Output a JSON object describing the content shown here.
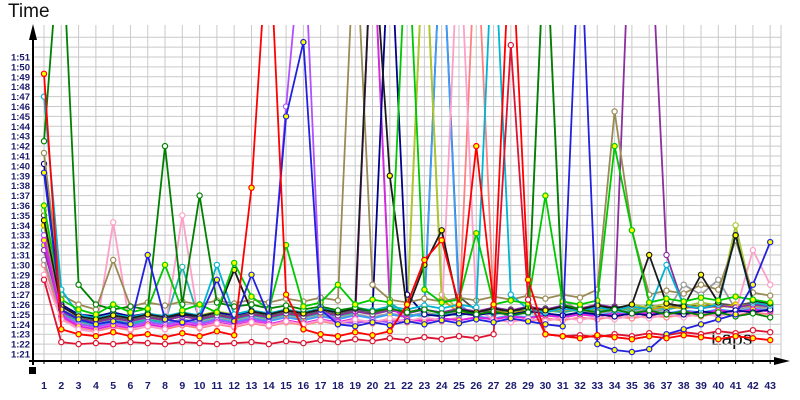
{
  "chart_data": {
    "type": "line",
    "title": "",
    "xlabel": "Laps",
    "ylabel": "Time",
    "x_ticks": [
      "1",
      "2",
      "3",
      "4",
      "5",
      "6",
      "7",
      "8",
      "9",
      "10",
      "11",
      "12",
      "13",
      "14",
      "15",
      "16",
      "17",
      "18",
      "19",
      "20",
      "21",
      "22",
      "23",
      "24",
      "25",
      "26",
      "27",
      "28",
      "29",
      "30",
      "31",
      "32",
      "33",
      "34",
      "35",
      "36",
      "37",
      "38",
      "39",
      "40",
      "41",
      "42",
      "43"
    ],
    "y_ticks": [
      "1:51",
      "1:50",
      "1:49",
      "1:48",
      "1:47",
      "1:46",
      "1:45",
      "1:44",
      "1:43",
      "1:42",
      "1:41",
      "1:40",
      "1:39",
      "1:38",
      "1:37",
      "1:36",
      "1:35",
      "1:34",
      "1:33",
      "1:32",
      "1:31",
      "1:30",
      "1:29",
      "1:28",
      "1:27",
      "1:26",
      "1:25",
      "1:24",
      "1:23",
      "1:22",
      "1:21"
    ],
    "x_range": [
      1,
      43
    ],
    "y_range_seconds": [
      80,
      114
    ],
    "grid": true,
    "legend": "none",
    "colors": {
      "background": "#ffffff",
      "grid": "#c9c9c9",
      "axis": "#000000",
      "tick_label": "#1b1b6e",
      "marker_fill_a": "#ffff00",
      "marker_fill_b": "#ffffff"
    },
    "note_units": "values are lap times in total seconds; 85.0 = 1:25.0; values >= 114 run off the top of the plot",
    "series": [
      {
        "name": "salmon",
        "color": "#ff8080",
        "marker": "#ffffff",
        "values": [
          90.0,
          84.6,
          83.6,
          83.3,
          83.7,
          83.4,
          83.8,
          83.5,
          83.9,
          83.6,
          84.0,
          83.7,
          84.1,
          83.8,
          84.2,
          83.9,
          84.3,
          84.0,
          84.4,
          84.1,
          84.5,
          84.2,
          84.6,
          84.3,
          84.7,
          125.0,
          85.8,
          84.5,
          84.3,
          84.6,
          84.4,
          84.7,
          84.5,
          84.8,
          84.6,
          84.9,
          84.7,
          85.0,
          84.8,
          85.1,
          84.9,
          85.2,
          85.0
        ]
      },
      {
        "name": "gray",
        "color": "#9a9a9a",
        "marker": "#ffffff",
        "values": [
          90.5,
          85.0,
          84.2,
          83.9,
          84.3,
          84.0,
          84.4,
          84.1,
          84.5,
          84.2,
          84.6,
          84.3,
          84.7,
          84.4,
          84.8,
          84.5,
          84.9,
          84.6,
          85.0,
          84.7,
          85.1,
          84.8,
          85.2,
          84.9,
          85.3,
          85.0,
          85.4,
          85.1,
          85.5,
          125.0,
          86.5,
          85.3,
          85.1,
          85.4,
          85.2,
          85.5,
          85.3,
          88.0,
          87.0,
          88.5,
          85.5,
          85.8,
          85.6
        ]
      },
      {
        "name": "darkgray",
        "color": "#4d4d4d",
        "marker": "#ffffff",
        "values": [
          95.0,
          85.5,
          84.6,
          84.3,
          84.7,
          84.4,
          84.8,
          84.5,
          84.9,
          84.6,
          85.0,
          84.7,
          85.1,
          84.8,
          85.2,
          84.9,
          85.3,
          85.0,
          85.4,
          85.1,
          85.5,
          85.2,
          85.6,
          125.0,
          86.8,
          85.4,
          85.2,
          85.5,
          85.3,
          85.6,
          85.4,
          85.7,
          85.5,
          85.8,
          85.6,
          85.9,
          85.7,
          86.0,
          85.8,
          86.1,
          85.9,
          86.2,
          86.0
        ]
      },
      {
        "name": "turquoise",
        "color": "#20b2aa",
        "marker": "#ffffff",
        "values": [
          93.5,
          85.2,
          84.3,
          84.0,
          84.4,
          84.1,
          84.5,
          84.2,
          89.8,
          84.4,
          84.8,
          84.5,
          84.9,
          84.6,
          85.0,
          84.7,
          85.1,
          84.8,
          85.2,
          125.0,
          86.2,
          85.0,
          84.8,
          85.1,
          84.9,
          85.2,
          85.0,
          85.3,
          85.1,
          85.4,
          85.2,
          85.5,
          85.3,
          85.6,
          85.4,
          85.7,
          85.5,
          85.8,
          85.6,
          85.9,
          85.7,
          86.0,
          85.8
        ]
      },
      {
        "name": "skyblue",
        "color": "#3c9bff",
        "marker": "#ffff00",
        "values": [
          92.0,
          85.0,
          84.0,
          83.8,
          84.2,
          83.9,
          84.3,
          84.0,
          84.4,
          84.1,
          84.5,
          84.2,
          84.6,
          84.3,
          84.7,
          84.4,
          84.8,
          84.5,
          84.9,
          84.6,
          85.0,
          84.7,
          85.1,
          125.0,
          86.0,
          84.8,
          84.6,
          84.9,
          84.7,
          85.0,
          84.8,
          85.1,
          84.9,
          85.2,
          85.0,
          85.3,
          85.1,
          85.4,
          85.2,
          85.5,
          85.3,
          85.6,
          85.4
        ]
      },
      {
        "name": "gold",
        "color": "#c8a800",
        "marker": "#ffff00",
        "values": [
          94.0,
          85.5,
          84.5,
          84.2,
          84.6,
          84.3,
          84.7,
          84.4,
          84.8,
          84.5,
          84.9,
          84.6,
          85.0,
          84.7,
          85.1,
          84.8,
          85.2,
          84.9,
          85.3,
          85.0,
          85.4,
          85.1,
          125.0,
          86.5,
          85.2,
          85.0,
          85.3,
          85.1,
          85.4,
          85.2,
          85.5,
          85.3,
          85.6,
          85.4,
          85.7,
          85.5,
          85.8,
          85.6,
          85.9,
          85.7,
          86.0,
          85.8,
          86.1
        ]
      },
      {
        "name": "yellowgreen",
        "color": "#a8c832",
        "marker": "#ffffff",
        "values": [
          95.5,
          86.0,
          85.0,
          84.6,
          85.0,
          84.7,
          85.1,
          84.8,
          85.2,
          84.9,
          85.3,
          85.0,
          85.4,
          85.1,
          85.5,
          85.2,
          85.6,
          85.3,
          85.7,
          85.4,
          85.8,
          85.5,
          125.0,
          87.0,
          85.5,
          85.2,
          85.6,
          85.3,
          85.7,
          85.4,
          85.8,
          85.5,
          85.9,
          85.6,
          86.0,
          85.7,
          86.1,
          85.8,
          86.2,
          85.9,
          94.0,
          86.5,
          86.0
        ]
      },
      {
        "name": "purple",
        "color": "#8b2f9e",
        "marker": "#ffffff",
        "values": [
          91.5,
          85.3,
          84.5,
          84.2,
          84.6,
          84.3,
          84.7,
          84.4,
          84.8,
          84.5,
          84.9,
          84.6,
          85.0,
          84.7,
          85.1,
          84.8,
          85.2,
          84.9,
          85.3,
          85.0,
          85.4,
          85.1,
          85.5,
          85.2,
          85.6,
          85.3,
          85.7,
          85.4,
          85.8,
          85.5,
          85.9,
          85.6,
          86.0,
          85.7,
          130.0,
          127.0,
          91.0,
          85.8,
          85.6,
          85.9,
          85.7,
          86.0,
          85.8
        ]
      },
      {
        "name": "orchid",
        "color": "#b050ff",
        "marker": "#ffffff",
        "values": [
          93.0,
          85.0,
          84.0,
          83.7,
          84.1,
          83.8,
          84.2,
          83.9,
          84.3,
          84.0,
          84.4,
          84.1,
          84.5,
          84.2,
          106.0,
          125.0,
          85.5,
          84.3,
          84.1,
          84.4,
          84.2,
          84.5,
          84.3,
          84.6,
          84.4,
          84.7,
          84.5,
          84.8,
          84.6,
          84.9,
          84.7,
          85.0,
          84.8,
          85.1,
          84.9,
          85.2,
          85.0,
          85.3,
          85.1,
          85.4,
          85.2,
          85.5,
          85.3
        ]
      },
      {
        "name": "magenta",
        "color": "#e020e0",
        "marker": "#ffff00",
        "values": [
          92.5,
          84.8,
          83.8,
          83.5,
          83.9,
          83.6,
          84.0,
          83.7,
          84.1,
          83.8,
          84.2,
          83.9,
          84.3,
          84.0,
          84.4,
          84.1,
          84.5,
          84.2,
          84.6,
          125.0,
          85.8,
          84.5,
          84.3,
          84.6,
          84.4,
          84.7,
          84.5,
          84.8,
          84.6,
          84.9,
          84.7,
          85.0,
          84.8,
          85.1,
          84.9,
          85.2,
          85.0,
          85.3,
          85.1,
          85.4,
          85.2,
          85.5,
          85.3
        ]
      },
      {
        "name": "pink",
        "color": "#ff9ec8",
        "marker": "#ffffff",
        "values": [
          89.0,
          84.5,
          83.5,
          83.2,
          94.3,
          83.5,
          83.8,
          83.5,
          95.0,
          83.7,
          84.1,
          83.8,
          84.2,
          83.9,
          84.3,
          84.0,
          84.4,
          84.1,
          84.5,
          84.2,
          84.6,
          84.3,
          84.7,
          84.4,
          125.0,
          85.5,
          84.5,
          84.2,
          84.6,
          84.3,
          84.7,
          84.4,
          84.8,
          84.5,
          84.9,
          84.6,
          85.0,
          84.7,
          85.1,
          84.8,
          85.2,
          91.5,
          88.0
        ]
      },
      {
        "name": "navy",
        "color": "#00008b",
        "marker": "#ffffff",
        "values": [
          100.2,
          86.0,
          85.0,
          84.8,
          85.2,
          84.8,
          85.1,
          84.7,
          85.0,
          84.8,
          85.2,
          84.9,
          85.3,
          85.0,
          85.4,
          85.1,
          85.5,
          85.2,
          85.6,
          85.3,
          125.0,
          87.0,
          85.0,
          84.8,
          85.1,
          84.9,
          85.2,
          85.0,
          85.3,
          85.1,
          84.9,
          85.2,
          85.0,
          84.8,
          85.1,
          84.9,
          85.2,
          85.0,
          85.3,
          85.1,
          85.4,
          85.2,
          85.5
        ]
      },
      {
        "name": "darkkhaki",
        "color": "#9a8a55",
        "marker": "#ffffff",
        "values": [
          101.3,
          87.0,
          86.0,
          85.5,
          90.5,
          85.8,
          86.2,
          85.9,
          86.3,
          86.0,
          86.4,
          86.1,
          86.5,
          86.2,
          86.6,
          86.3,
          86.7,
          86.4,
          125.0,
          88.0,
          86.5,
          86.2,
          86.6,
          86.3,
          86.7,
          86.4,
          86.8,
          86.5,
          86.9,
          86.6,
          87.0,
          86.7,
          87.5,
          105.5,
          93.5,
          87.0,
          87.4,
          87.1,
          88.0,
          87.5,
          92.5,
          87.2,
          86.9
        ]
      },
      {
        "name": "cyan",
        "color": "#00b4d2",
        "marker": "#ffffff",
        "values": [
          107.0,
          87.5,
          85.0,
          84.6,
          85.0,
          84.7,
          85.1,
          84.8,
          85.2,
          84.9,
          90.0,
          85.0,
          85.4,
          85.1,
          85.5,
          85.2,
          85.6,
          85.3,
          85.7,
          85.4,
          85.8,
          85.5,
          85.9,
          85.6,
          86.0,
          85.7,
          125.0,
          87.0,
          85.5,
          85.2,
          85.6,
          85.3,
          85.7,
          85.4,
          85.8,
          85.5,
          90.0,
          85.9,
          85.6,
          86.0,
          93.0,
          86.2,
          85.9
        ]
      },
      {
        "name": "black",
        "color": "#1a1a1a",
        "marker": "#ffff00",
        "values": [
          94.5,
          85.8,
          84.8,
          84.5,
          84.9,
          84.6,
          85.0,
          84.7,
          85.1,
          84.8,
          85.2,
          89.5,
          85.3,
          85.0,
          85.4,
          85.1,
          85.5,
          85.2,
          85.6,
          125.0,
          99.0,
          85.4,
          90.0,
          93.5,
          85.5,
          85.2,
          85.6,
          85.3,
          85.7,
          85.4,
          85.8,
          85.5,
          85.9,
          85.6,
          86.0,
          91.0,
          86.1,
          85.8,
          89.0,
          86.2,
          93.0,
          86.4,
          86.1
        ]
      },
      {
        "name": "green",
        "color": "#008000",
        "marker": "#ffffff",
        "values": [
          102.5,
          125.0,
          88.0,
          86.0,
          85.5,
          85.8,
          85.5,
          102.0,
          86.0,
          97.0,
          86.2,
          85.8,
          86.0,
          85.6,
          85.9,
          85.5,
          85.8,
          85.4,
          85.7,
          85.3,
          85.6,
          85.2,
          85.5,
          85.1,
          85.4,
          85.0,
          85.3,
          84.9,
          85.2,
          125.0,
          86.0,
          85.5,
          85.2,
          85.5,
          85.1,
          85.4,
          85.0,
          85.3,
          84.9,
          85.2,
          84.8,
          85.1,
          84.7
        ]
      },
      {
        "name": "limegreen",
        "color": "#00c800",
        "marker": "#ffff00",
        "values": [
          96.0,
          86.5,
          85.5,
          85.0,
          86.0,
          85.2,
          85.6,
          90.0,
          85.4,
          86.0,
          85.2,
          90.2,
          86.8,
          85.5,
          92.0,
          85.8,
          86.2,
          88.0,
          86.0,
          86.5,
          86.2,
          125.0,
          87.5,
          86.2,
          86.5,
          93.2,
          86.0,
          86.4,
          86.1,
          97.0,
          86.3,
          86.0,
          86.4,
          102.0,
          93.5,
          86.2,
          86.6,
          86.3,
          86.7,
          86.4,
          86.8,
          86.5,
          86.2
        ]
      },
      {
        "name": "crimson",
        "color": "#dc1432",
        "marker": "#ffffff",
        "values": [
          88.5,
          82.2,
          82.0,
          82.1,
          82.0,
          82.2,
          82.1,
          82.0,
          82.2,
          82.1,
          82.0,
          82.1,
          82.2,
          82.0,
          82.3,
          82.1,
          82.4,
          82.2,
          82.5,
          82.3,
          82.6,
          82.4,
          82.7,
          82.5,
          82.8,
          82.6,
          83.0,
          112.2,
          86.5,
          83.0,
          82.8,
          82.9,
          82.7,
          83.0,
          82.8,
          83.1,
          82.9,
          83.2,
          83.0,
          83.3,
          83.1,
          83.4,
          83.2
        ]
      },
      {
        "name": "blue",
        "color": "#2121de",
        "marker": "#ffff00",
        "values": [
          99.3,
          85.5,
          84.5,
          84.0,
          84.3,
          84.0,
          91.0,
          84.5,
          84.2,
          84.6,
          88.5,
          84.3,
          89.0,
          84.8,
          105.0,
          112.5,
          85.5,
          84.0,
          83.8,
          84.2,
          83.9,
          84.3,
          84.0,
          84.4,
          84.1,
          84.5,
          84.2,
          84.6,
          84.3,
          84.0,
          83.8,
          125.0,
          82.0,
          81.4,
          81.2,
          81.5,
          83.0,
          83.5,
          84.0,
          84.5,
          85.0,
          88.0,
          92.3
        ]
      },
      {
        "name": "red",
        "color": "#ff0000",
        "marker": "#ffff00",
        "values": [
          109.3,
          83.5,
          83.0,
          82.8,
          83.2,
          82.8,
          83.0,
          82.7,
          83.1,
          82.8,
          83.3,
          82.9,
          97.8,
          125.0,
          87.0,
          83.5,
          83.0,
          82.8,
          83.2,
          82.9,
          83.3,
          86.0,
          90.5,
          92.5,
          86.0,
          102.0,
          86.0,
          125.0,
          88.5,
          83.0,
          82.8,
          82.6,
          82.9,
          82.7,
          82.5,
          82.8,
          82.6,
          82.9,
          82.7,
          82.5,
          82.8,
          82.6,
          82.4
        ]
      }
    ]
  }
}
